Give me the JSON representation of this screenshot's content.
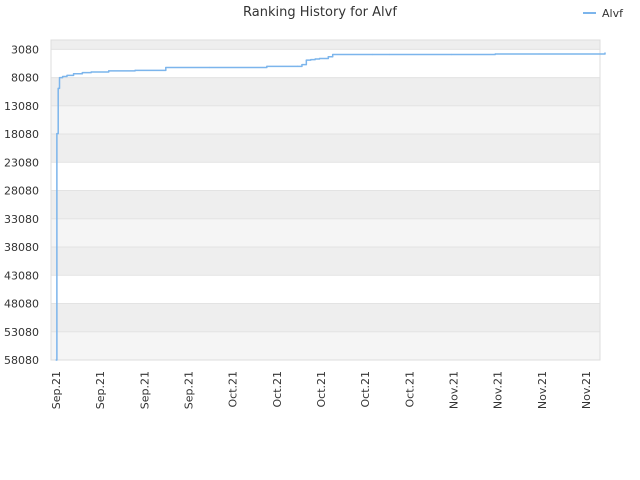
{
  "chart_data": {
    "type": "line",
    "title": "Ranking History for Alvf",
    "xlabel": "",
    "ylabel": "",
    "y_reversed": true,
    "ylim": [
      58080,
      3080
    ],
    "yticks": [
      3080,
      8080,
      13080,
      18080,
      23080,
      28080,
      33080,
      38080,
      43080,
      48080,
      53080,
      58080
    ],
    "grid": true,
    "grid_bands": [
      "#eeeeee",
      "#f5f5f5"
    ],
    "legend_position": "top-right",
    "x_tick_labels": [
      "Sep.21",
      "Sep.21",
      "Sep.21",
      "Sep.21",
      "Oct.21",
      "Oct.21",
      "Oct.21",
      "Oct.21",
      "Oct.21",
      "Nov.21",
      "Nov.21",
      "Nov.21",
      "Nov.21"
    ],
    "x_range": [
      0,
      125
    ],
    "series": [
      {
        "name": "Alvf",
        "color": "#7cb5ec",
        "x": [
          0.0,
          0.2,
          0.5,
          0.8,
          1.5,
          2.5,
          4,
          6,
          8,
          12,
          18,
          25,
          35,
          48,
          55,
          56,
          57,
          58,
          59,
          60,
          62,
          63,
          72,
          76,
          90,
          100,
          110,
          125
        ],
        "y": [
          58080,
          18000,
          10000,
          8100,
          7900,
          7700,
          7400,
          7200,
          7100,
          6900,
          6800,
          6300,
          6300,
          6100,
          6100,
          5800,
          5000,
          4900,
          4800,
          4700,
          4400,
          4000,
          4000,
          4000,
          4000,
          3900,
          3900,
          3700
        ]
      }
    ]
  }
}
